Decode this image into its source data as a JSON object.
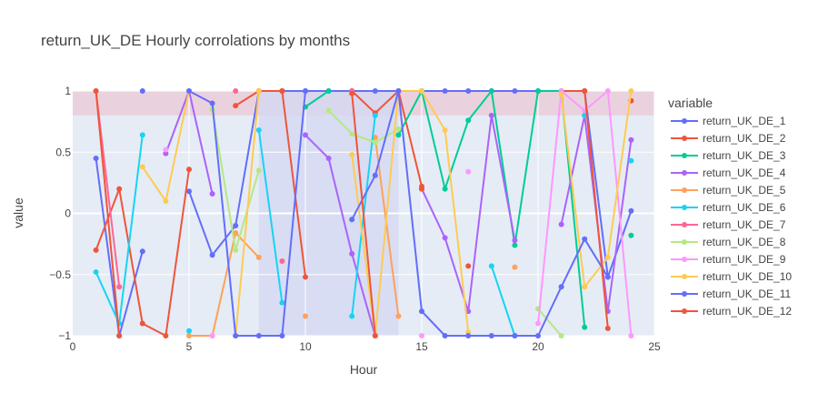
{
  "chart_data": {
    "type": "line",
    "title": "return_UK_DE Hourly corrolations by months",
    "xlabel": "Hour",
    "ylabel": "value",
    "xlim": [
      0,
      25
    ],
    "ylim": [
      -1,
      1
    ],
    "x_ticks": [
      0,
      5,
      10,
      15,
      20,
      25
    ],
    "y_ticks": [
      -1,
      -0.5,
      0,
      0.5,
      1
    ],
    "x_tick_labels": [
      "0",
      "5",
      "10",
      "15",
      "20",
      "25"
    ],
    "y_tick_labels": [
      "−1",
      "−0.5",
      "0",
      "0.5",
      "1"
    ],
    "grid": true,
    "legend_title": "variable",
    "legend_position": "right",
    "shapes": [
      {
        "kind": "y-band",
        "y0": 0.8,
        "y1": 1.0,
        "color": "#e9c9d6"
      },
      {
        "kind": "x-band",
        "x0": 8,
        "x1": 14,
        "color": "#d3d8f2"
      }
    ],
    "x": [
      1,
      2,
      3,
      4,
      5,
      6,
      7,
      8,
      9,
      10,
      11,
      12,
      13,
      14,
      15,
      16,
      17,
      18,
      19,
      20,
      21,
      22,
      23,
      24
    ],
    "series": [
      {
        "name": "return_UK_DE_1",
        "color": "#636efa",
        "values": [
          0.45,
          -1,
          -0.31,
          null,
          0.18,
          -0.34,
          -0.1,
          1,
          1,
          1,
          1,
          1,
          1,
          1,
          1,
          1,
          1,
          1,
          1,
          1,
          1,
          1,
          -0.52,
          0.02
        ]
      },
      {
        "name": "return_UK_DE_2",
        "color": "#ef553b",
        "values": [
          -0.3,
          0.2,
          -0.9,
          -1,
          0.36,
          null,
          0.88,
          1,
          1,
          -0.52,
          null,
          1,
          0.82,
          1,
          0.22,
          null,
          -0.43,
          null,
          null,
          null,
          1,
          1,
          null,
          0.92
        ]
      },
      {
        "name": "return_UK_DE_3",
        "color": "#00cc96",
        "values": [
          null,
          null,
          null,
          null,
          null,
          null,
          null,
          null,
          null,
          0.87,
          1,
          null,
          null,
          0.64,
          1,
          0.2,
          0.76,
          1,
          -0.26,
          1,
          1,
          -0.93,
          null,
          -0.18
        ]
      },
      {
        "name": "return_UK_DE_4",
        "color": "#ab63fa",
        "values": [
          null,
          null,
          null,
          0.49,
          1,
          0.16,
          null,
          null,
          null,
          0.64,
          0.45,
          -0.33,
          -1,
          null,
          0.2,
          -0.2,
          -0.8,
          0.8,
          -0.22,
          null,
          -0.09,
          0.8,
          -0.8,
          0.6
        ]
      },
      {
        "name": "return_UK_DE_5",
        "color": "#ffa15a",
        "values": [
          null,
          null,
          null,
          null,
          -1,
          -1,
          -0.16,
          -0.36,
          null,
          -0.84,
          null,
          null,
          0.62,
          -0.84,
          null,
          null,
          null,
          null,
          -0.44,
          null,
          null,
          -0.6,
          null,
          null
        ]
      },
      {
        "name": "return_UK_DE_6",
        "color": "#19d3f3",
        "values": [
          -0.48,
          -0.9,
          0.64,
          null,
          -0.96,
          null,
          null,
          0.68,
          -0.73,
          null,
          null,
          -0.84,
          0.8,
          null,
          null,
          null,
          null,
          -0.43,
          -1,
          null,
          null,
          0.8,
          null,
          0.43
        ]
      },
      {
        "name": "return_UK_DE_7",
        "color": "#ff6692",
        "values": [
          1,
          -0.6,
          null,
          null,
          null,
          null,
          1,
          null,
          -0.39,
          null,
          null,
          1,
          null,
          null,
          null,
          null,
          null,
          null,
          null,
          null,
          null,
          null,
          null,
          null
        ]
      },
      {
        "name": "return_UK_DE_8",
        "color": "#b6e880",
        "values": [
          null,
          null,
          null,
          null,
          null,
          0.85,
          -0.3,
          0.35,
          null,
          null,
          0.84,
          0.65,
          0.58,
          0.69,
          null,
          null,
          null,
          null,
          null,
          -0.78,
          -1,
          null,
          null,
          null
        ]
      },
      {
        "name": "return_UK_DE_9",
        "color": "#ff97ff",
        "values": [
          null,
          null,
          null,
          0.52,
          null,
          -1,
          null,
          null,
          null,
          null,
          null,
          null,
          null,
          null,
          -1,
          null,
          0.34,
          null,
          null,
          -0.9,
          1,
          0.84,
          1,
          -1
        ]
      },
      {
        "name": "return_UK_DE_10",
        "color": "#fecb52",
        "values": [
          null,
          null,
          0.38,
          0.1,
          1,
          null,
          -1,
          1,
          null,
          null,
          null,
          0.48,
          -1,
          1,
          1,
          0.68,
          -0.97,
          null,
          null,
          null,
          0.97,
          -0.6,
          -0.36,
          1
        ]
      },
      {
        "name": "return_UK_DE_11",
        "color": "#636efa",
        "values": [
          null,
          null,
          1,
          null,
          1,
          0.9,
          -1,
          -1,
          -1,
          1,
          null,
          -0.05,
          0.31,
          1,
          -0.8,
          -1,
          -1,
          -1,
          -1,
          -1,
          -0.6,
          -0.21,
          -0.52,
          null
        ]
      },
      {
        "name": "return_UK_DE_12",
        "color": "#ef553b",
        "values": [
          1,
          -1,
          null,
          null,
          null,
          null,
          null,
          null,
          1,
          null,
          null,
          0.98,
          -1,
          null,
          0.2,
          null,
          null,
          null,
          null,
          null,
          null,
          1,
          -0.94,
          null
        ]
      }
    ]
  }
}
